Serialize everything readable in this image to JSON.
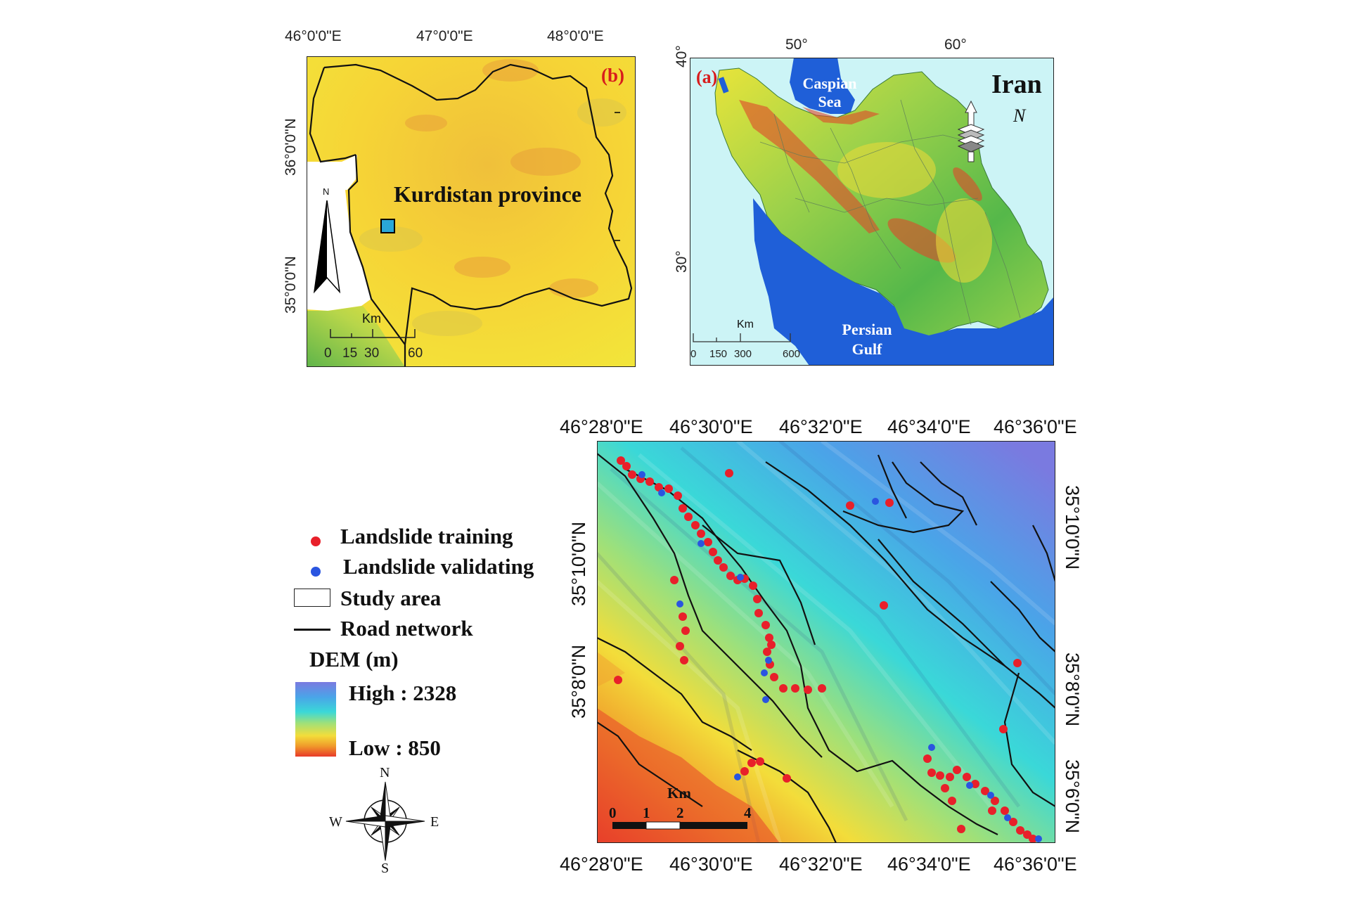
{
  "panel_b": {
    "label": "(b)",
    "province_label": "Kurdistan province",
    "top_ticks": [
      "46°0'0\"E",
      "47°0'0\"E",
      "48°0'0\"E"
    ],
    "left_ticks": [
      "36°0'0\"N",
      "35°0'0\"N"
    ],
    "north": "N",
    "scale_unit": "Km",
    "scale_labels": [
      "0",
      "15",
      "30",
      "60"
    ]
  },
  "panel_a": {
    "label": "(a)",
    "country": "Iran",
    "top_ticks": [
      "50°",
      "60°"
    ],
    "left_ticks": [
      "40°",
      "30°"
    ],
    "caspian": "Caspian Sea",
    "persian_gulf": "Persian Gulf",
    "north": "N",
    "scale_unit": "Km",
    "scale_labels": [
      "0",
      "150",
      "300",
      "600"
    ]
  },
  "main_map": {
    "top_ticks": [
      "46°28'0\"E",
      "46°30'0\"E",
      "46°32'0\"E",
      "46°34'0\"E",
      "46°36'0\"E"
    ],
    "bottom_ticks": [
      "46°28'0\"E",
      "46°30'0\"E",
      "46°32'0\"E",
      "46°34'0\"E",
      "46°36'0\"E"
    ],
    "left_ticks": [
      "35°10'0\"N",
      "35°8'0\"N"
    ],
    "right_ticks": [
      "35°10'0\"N",
      "35°8'0\"N",
      "35°6'0\"N"
    ],
    "scale_unit": "Km",
    "scale_labels": [
      "0",
      "1",
      "2",
      "4"
    ]
  },
  "legend": {
    "training": "Landslide training",
    "validating": "Landslide validating",
    "study_area": "Study area",
    "road": "Road network",
    "dem_title": "DEM (m)",
    "high": "High : 2328",
    "low": "Low : 850",
    "compass": {
      "n": "N",
      "s": "S",
      "e": "E",
      "w": "W"
    }
  },
  "colors": {
    "training": "#e8202a",
    "validating": "#2a55e0",
    "water": "#1f5fd8",
    "ocean_bg": "#ccf4f6"
  }
}
